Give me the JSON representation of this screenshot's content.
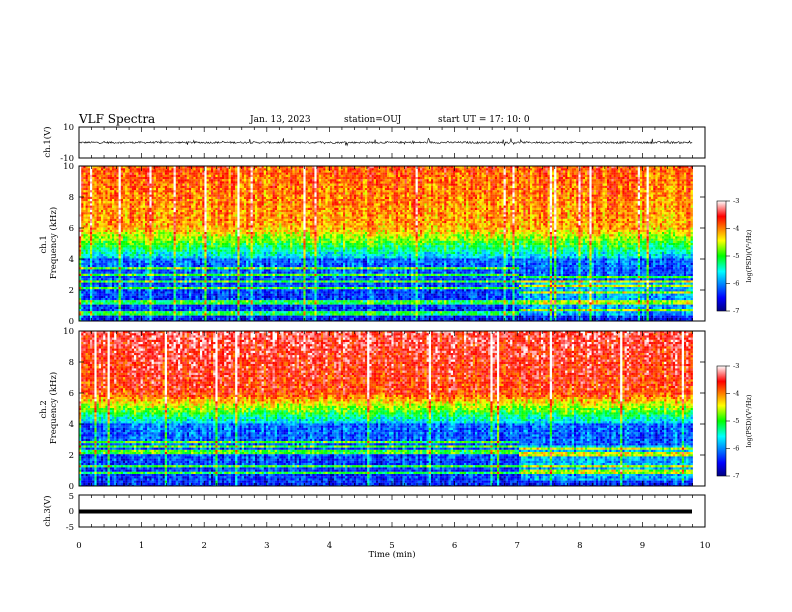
{
  "header": {
    "title": "VLF Spectra",
    "date": "Jan. 13, 2023",
    "station": "station=OUJ",
    "start_ut": "start UT =  17: 10: 0"
  },
  "chart_data": [
    {
      "type": "line",
      "panel": "ch1-waveform",
      "ylabel": "ch.1(V)",
      "ylim": [
        -10,
        10
      ],
      "yticks": [
        "10",
        "-10"
      ],
      "xlim": [
        0,
        10
      ],
      "baseline": 0,
      "spike_range": [
        -2,
        3
      ],
      "ends_at_min": 9.8
    },
    {
      "type": "heatmap",
      "panel": "ch1-spectrogram",
      "ylabel": "ch.1\nFrequency (kHz)",
      "ylim": [
        0,
        10
      ],
      "yticks": [
        "0",
        "2",
        "4",
        "6",
        "8",
        "10"
      ],
      "xlim": [
        0,
        10
      ],
      "ends_at_min": 9.8,
      "colorbar": {
        "label": "log(PSD)(V²/Hz)",
        "range": [
          -7,
          -3
        ],
        "ticks": [
          "-3",
          "-4",
          "-5",
          "-6",
          "-7"
        ]
      },
      "bands_khz": [
        0.5,
        1.2,
        2.1,
        2.6,
        3.0,
        3.4
      ],
      "band_shift_min": 7.0
    },
    {
      "type": "heatmap",
      "panel": "ch2-spectrogram",
      "ylabel": "ch.2\nFrequency (kHz)",
      "ylim": [
        0,
        10
      ],
      "yticks": [
        "0",
        "2",
        "4",
        "6",
        "8",
        "10"
      ],
      "xlim": [
        0,
        10
      ],
      "ends_at_min": 9.8,
      "colorbar": {
        "label": "log(PSD)(V²/Hz)",
        "range": [
          -7,
          -3
        ],
        "ticks": [
          "-3",
          "-4",
          "-5",
          "-6",
          "-7"
        ]
      },
      "bands_khz": [
        0.8,
        1.3,
        2.2,
        2.5,
        2.8
      ],
      "band_shift_min": 7.0
    },
    {
      "type": "line",
      "panel": "ch3-waveform",
      "ylabel": "ch.3(V)",
      "ylim": [
        -5,
        5
      ],
      "yticks": [
        "5",
        "0",
        "-5"
      ],
      "xlim": [
        0,
        10
      ],
      "value": 0,
      "xlabel": "Time (min)",
      "xticks": [
        "0",
        "1",
        "2",
        "3",
        "4",
        "5",
        "6",
        "7",
        "8",
        "9",
        "10"
      ]
    }
  ]
}
